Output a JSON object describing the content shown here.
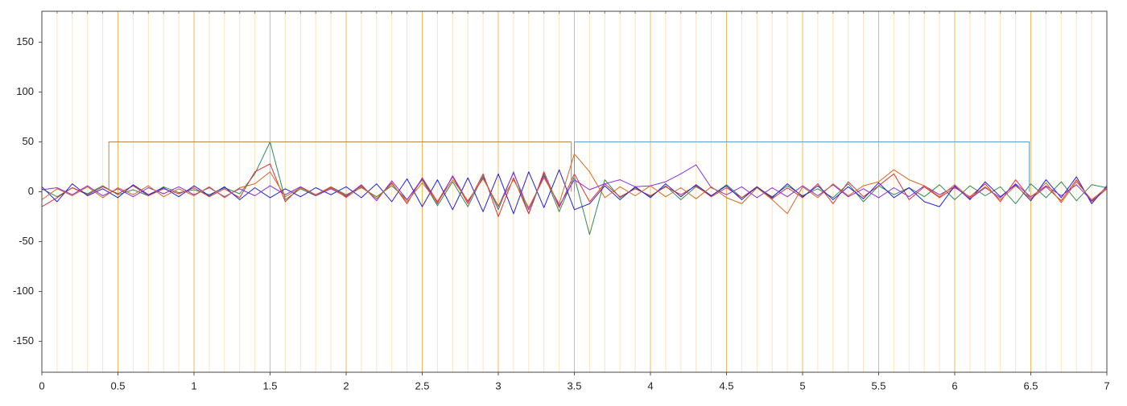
{
  "chart_data": {
    "type": "line",
    "xlim": [
      0,
      7
    ],
    "ylim": [
      -181,
      181
    ],
    "xticks": [
      0,
      0.5,
      1,
      1.5,
      2,
      2.5,
      3,
      3.5,
      4,
      4.5,
      5,
      5.5,
      6,
      6.5,
      7
    ],
    "yticks": [
      -150,
      -100,
      -50,
      0,
      50,
      100,
      150
    ],
    "grid": true,
    "x": [
      0,
      0.1,
      0.2,
      0.3,
      0.4,
      0.5,
      0.6,
      0.7,
      0.8,
      0.9,
      1,
      1.1,
      1.2,
      1.3,
      1.4,
      1.5,
      1.6,
      1.7,
      1.8,
      1.9,
      2,
      2.1,
      2.2,
      2.3,
      2.4,
      2.5,
      2.6,
      2.7,
      2.8,
      2.9,
      3,
      3.1,
      3.2,
      3.3,
      3.4,
      3.5,
      3.6,
      3.7,
      3.8,
      3.9,
      4,
      4.1,
      4.2,
      4.3,
      4.4,
      4.5,
      4.6,
      4.7,
      4.8,
      4.9,
      5,
      5.1,
      5.2,
      5.3,
      5.4,
      5.5,
      5.6,
      5.7,
      5.8,
      5.9,
      6,
      6.1,
      6.2,
      6.3,
      6.4,
      6.5,
      6.6,
      6.7,
      6.8,
      6.9,
      7
    ],
    "series": [
      {
        "color": "#2e8b57",
        "values": [
          3,
          -5,
          4,
          -2,
          6,
          -3,
          2,
          -4,
          5,
          -1,
          2,
          -3,
          4,
          -2,
          18,
          50,
          -8,
          3,
          -4,
          5,
          -3,
          4,
          -5,
          6,
          -8,
          12,
          -14,
          10,
          -15,
          16,
          -18,
          20,
          -22,
          18,
          -20,
          15,
          -43,
          12,
          -6,
          4,
          -5,
          6,
          -8,
          5,
          -4,
          7,
          -6,
          4,
          -5,
          6,
          -4,
          3,
          -6,
          8,
          -10,
          6,
          -3,
          4,
          -5,
          7,
          -8,
          6,
          -4,
          5,
          -12,
          8,
          -6,
          10,
          -9,
          7,
          4
        ]
      },
      {
        "color": "#e03030",
        "values": [
          -15,
          -6,
          4,
          -3,
          5,
          -2,
          6,
          -4,
          3,
          -2,
          4,
          -5,
          3,
          -6,
          20,
          28,
          -10,
          5,
          -3,
          4,
          -4,
          6,
          -7,
          9,
          -12,
          14,
          -10,
          15,
          -12,
          18,
          -25,
          14,
          -22,
          20,
          -16,
          18,
          -10,
          8,
          -5,
          3,
          -4,
          5,
          -3,
          6,
          -5,
          4,
          -6,
          5,
          -7,
          4,
          -6,
          8,
          -12,
          10,
          -5,
          6,
          18,
          -8,
          5,
          -6,
          4,
          -5,
          8,
          -10,
          12,
          -7,
          5,
          -9,
          12,
          -10,
          3
        ]
      },
      {
        "color": "#2020e0",
        "values": [
          5,
          -10,
          8,
          -4,
          3,
          -6,
          7,
          -3,
          4,
          -5,
          6,
          -4,
          5,
          -8,
          4,
          -6,
          3,
          -5,
          4,
          -3,
          5,
          -6,
          8,
          -10,
          13,
          -15,
          12,
          -18,
          14,
          -20,
          18,
          -22,
          20,
          -16,
          22,
          -18,
          -12,
          6,
          -8,
          5,
          -6,
          8,
          -5,
          7,
          -4,
          6,
          -8,
          5,
          -6,
          8,
          -5,
          6,
          -8,
          5,
          -7,
          9,
          -6,
          4,
          -10,
          -15,
          6,
          -8,
          10,
          -5,
          7,
          -9,
          12,
          -6,
          15,
          -12,
          6
        ]
      },
      {
        "color": "#8a2be2",
        "values": [
          2,
          4,
          -3,
          6,
          -4,
          3,
          -5,
          4,
          -2,
          5,
          -3,
          4,
          -5,
          3,
          -4,
          6,
          -3,
          5,
          -4,
          3,
          -5,
          7,
          -9,
          11,
          -8,
          13,
          -12,
          16,
          -10,
          14,
          -15,
          19,
          -18,
          16,
          -14,
          12,
          2,
          8,
          12,
          5,
          6,
          10,
          18,
          27,
          4,
          -3,
          5,
          -6,
          4,
          -5,
          6,
          -4,
          7,
          -5,
          3,
          -6,
          4,
          -5,
          6,
          -3,
          5,
          -7,
          4,
          -6,
          8,
          -5,
          6,
          -4,
          7,
          -9,
          5
        ]
      },
      {
        "color": "#d2691e",
        "values": [
          -8,
          3,
          -4,
          5,
          -6,
          4,
          -3,
          6,
          -5,
          3,
          -4,
          5,
          -6,
          4,
          8,
          20,
          -5,
          4,
          -3,
          5,
          -6,
          5,
          -7,
          8,
          -10,
          9,
          -11,
          12,
          -9,
          13,
          -14,
          12,
          -16,
          14,
          -12,
          38,
          20,
          -6,
          5,
          -4,
          6,
          -5,
          4,
          -7,
          5,
          -6,
          -12,
          4,
          -8,
          -22,
          5,
          -6,
          8,
          -4,
          6,
          10,
          22,
          12,
          6,
          -5,
          7,
          -6,
          5,
          -8,
          6,
          -7,
          9,
          -11,
          10,
          -8,
          4
        ]
      },
      {
        "color": "#b8864b",
        "x": [
          0.44,
          0.44,
          3.48,
          3.48
        ],
        "values": [
          0,
          50,
          50,
          0
        ]
      },
      {
        "color": "#5b9bd5",
        "x": [
          3.5,
          3.5,
          6.49,
          6.49
        ],
        "values": [
          0,
          50,
          50,
          0
        ]
      }
    ]
  }
}
